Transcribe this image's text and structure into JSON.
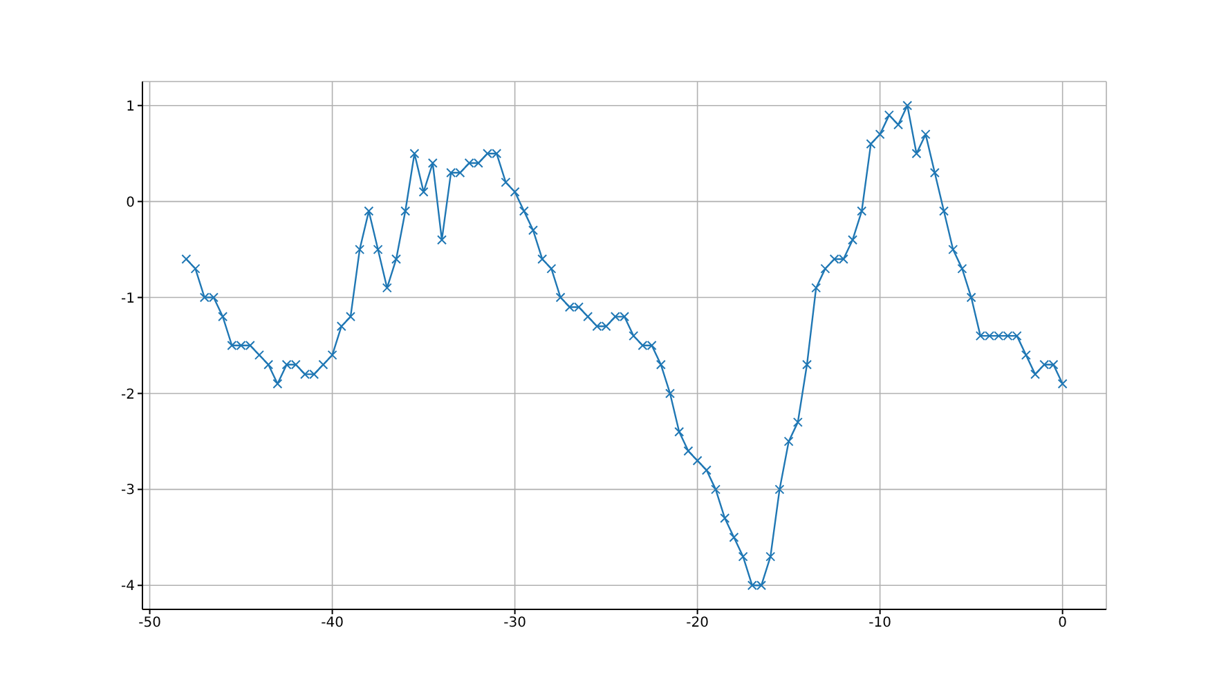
{
  "chart_data": {
    "type": "line",
    "x": [
      -48,
      -47.5,
      -47,
      -46.5,
      -46,
      -45.5,
      -45,
      -44.5,
      -44,
      -43.5,
      -43,
      -42.5,
      -42,
      -41.5,
      -41,
      -40.5,
      -40,
      -39.5,
      -39,
      -38.5,
      -38,
      -37.5,
      -37,
      -36.5,
      -36,
      -35.5,
      -35,
      -34.5,
      -34,
      -33.5,
      -33,
      -32.5,
      -32,
      -31.5,
      -31,
      -30.5,
      -30,
      -29.5,
      -29,
      -28.5,
      -28,
      -27.5,
      -27,
      -26.5,
      -26,
      -25.5,
      -25,
      -24.5,
      -24,
      -23.5,
      -23,
      -22.5,
      -22,
      -21.5,
      -21,
      -20.5,
      -20,
      -19.5,
      -19,
      -18.5,
      -18,
      -17.5,
      -17,
      -16.5,
      -16,
      -15.5,
      -15,
      -14.5,
      -14,
      -13.5,
      -13,
      -12.5,
      -12,
      -11.5,
      -11,
      -10.5,
      -10,
      -9.5,
      -9,
      -8.5,
      -8,
      -7.5,
      -7,
      -6.5,
      -6,
      -5.5,
      -5,
      -4.5,
      -4,
      -3.5,
      -3,
      -2.5,
      -2,
      -1.5,
      -1,
      -0.5,
      0
    ],
    "series": [
      {
        "color": "#1f77b4",
        "values": [
          -0.6,
          -0.7,
          -1.0,
          -1.0,
          -1.2,
          -1.5,
          -1.5,
          -1.5,
          -1.6,
          -1.7,
          -1.9,
          -1.7,
          -1.7,
          -1.8,
          -1.8,
          -1.7,
          -1.6,
          -1.3,
          -1.2,
          -0.5,
          -0.1,
          -0.5,
          -0.9,
          -0.6,
          -0.1,
          0.5,
          0.1,
          0.4,
          -0.4,
          0.3,
          0.3,
          0.4,
          0.4,
          0.5,
          0.5,
          0.2,
          0.1,
          -0.1,
          -0.3,
          -0.6,
          -0.7,
          -1.0,
          -1.1,
          -1.1,
          -1.2,
          -1.3,
          -1.3,
          -1.2,
          -1.2,
          -1.4,
          -1.5,
          -1.5,
          -1.7,
          -2.0,
          -2.4,
          -2.6,
          -2.7,
          -2.8,
          -3.0,
          -3.3,
          -3.5,
          -3.7,
          -4.0,
          -4.0,
          -3.7,
          -3.0,
          -2.5,
          -2.3,
          -1.7,
          -0.9,
          -0.7,
          -0.6,
          -0.6,
          -0.4,
          -0.1,
          0.6,
          0.7,
          0.9,
          0.8,
          1.0,
          0.5,
          0.7,
          0.3,
          -0.1,
          -0.5,
          -0.7,
          -1.0,
          -1.4,
          -1.4,
          -1.4,
          -1.4,
          -1.4,
          -1.6,
          -1.8,
          -1.7,
          -1.7,
          -1.9
        ]
      }
    ],
    "xlim": [
      -50.4,
      2.4
    ],
    "xticks": [
      -50,
      -40,
      -30,
      -20,
      -10,
      0
    ],
    "ylim": [
      -4.25,
      1.25
    ],
    "yticks": [
      -4,
      -3,
      -2,
      -1,
      0,
      1
    ],
    "grid": true,
    "marker": "cross",
    "line_style": "solid"
  }
}
